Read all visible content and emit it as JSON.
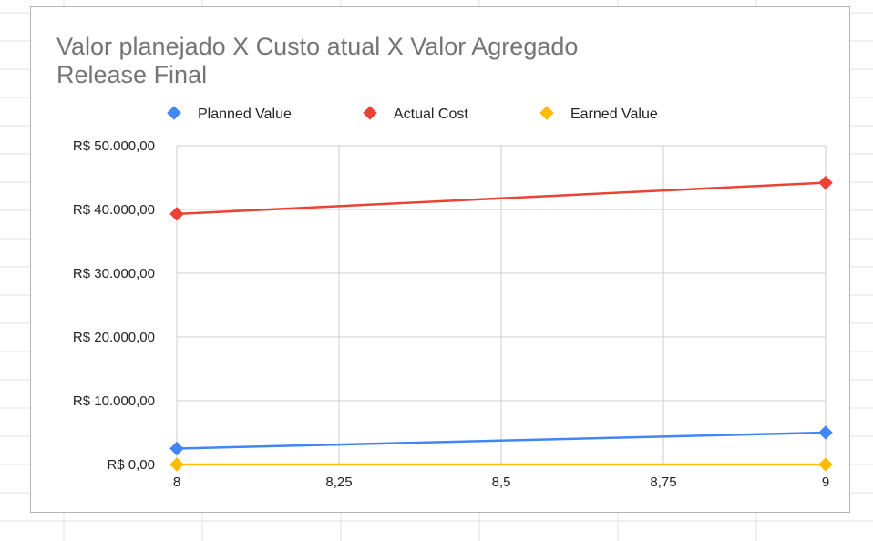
{
  "chart_data": {
    "type": "line",
    "title": [
      "Valor planejado X Custo atual X Valor Agregado",
      "Release Final"
    ],
    "x": [
      8,
      9
    ],
    "x_ticks": [
      8,
      8.25,
      8.5,
      8.75,
      9
    ],
    "x_tick_labels": [
      "8",
      "8,25",
      "8,5",
      "8,75",
      "9"
    ],
    "xlim": [
      8,
      9
    ],
    "ylim": [
      0,
      50000
    ],
    "y_ticks": [
      0,
      10000,
      20000,
      30000,
      40000,
      50000
    ],
    "y_tick_labels": [
      "R$ 0,00",
      "R$ 10.000,00",
      "R$ 20.000,00",
      "R$ 30.000,00",
      "R$ 40.000,00",
      "R$ 50.000,00"
    ],
    "grid": true,
    "legend_position": "top",
    "series": [
      {
        "name": "Planned Value",
        "color": "#4285f4",
        "values": [
          2500,
          5000
        ]
      },
      {
        "name": "Actual Cost",
        "color": "#ea4335",
        "values": [
          39300,
          44200
        ]
      },
      {
        "name": "Earned Value",
        "color": "#fbbc04",
        "values": [
          0,
          0
        ]
      }
    ]
  }
}
